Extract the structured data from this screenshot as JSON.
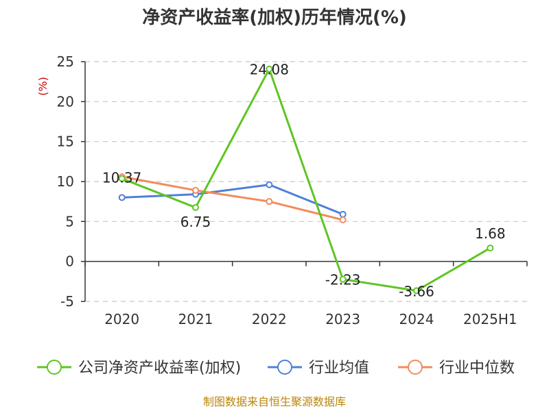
{
  "chart_data": {
    "type": "line",
    "title": "净资产收益率(加权)历年情况(%)",
    "ylabel": "(%)",
    "categories": [
      "2020",
      "2021",
      "2022",
      "2023",
      "2024",
      "2025H1"
    ],
    "ylim": [
      -5,
      25
    ],
    "yticks": [
      25,
      20,
      15,
      10,
      5,
      0,
      -5
    ],
    "grid": true,
    "legend_position": "bottom",
    "series": [
      {
        "name": "公司净资产收益率(加权)",
        "color": "#5ec522",
        "values": [
          10.37,
          6.75,
          24.08,
          -2.23,
          -3.66,
          1.68
        ],
        "labels": [
          "10.37",
          "6.75",
          "24.08",
          "-2.23",
          "-3.66",
          "1.68"
        ]
      },
      {
        "name": "行业均值",
        "color": "#4f7fd8",
        "values": [
          8.0,
          8.4,
          9.6,
          5.9,
          null,
          null
        ]
      },
      {
        "name": "行业中位数",
        "color": "#f28c5c",
        "values": [
          10.6,
          8.9,
          7.5,
          5.2,
          null,
          null
        ]
      }
    ]
  },
  "source": "制图数据来自恒生聚源数据库"
}
